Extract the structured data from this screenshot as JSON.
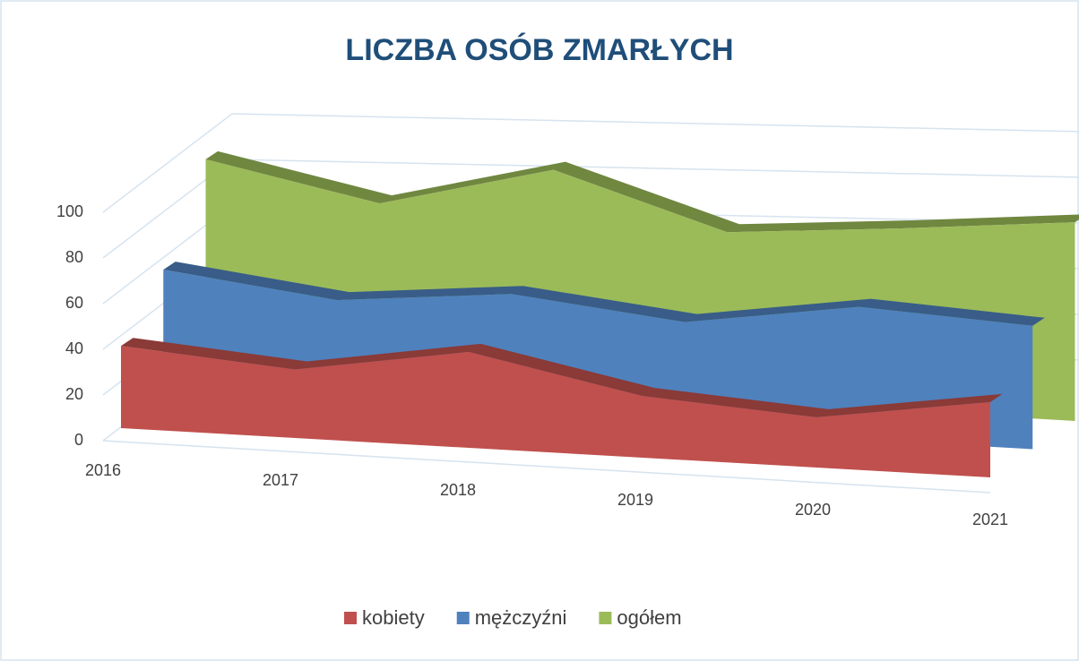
{
  "chart_data": {
    "type": "area3d",
    "title": "LICZBA OSÓB ZMARŁYCH",
    "categories": [
      "2016",
      "2017",
      "2018",
      "2019",
      "2020",
      "2021"
    ],
    "series": [
      {
        "name": "kobiety",
        "color": "#c0504d",
        "values": [
          36,
          30,
          42,
          27,
          22,
          33
        ]
      },
      {
        "name": "mężczyźni",
        "color": "#4f81bd",
        "values": [
          57,
          48,
          55,
          47,
          58,
          54
        ]
      },
      {
        "name": "ogółem",
        "color": "#9bbb59",
        "values": [
          93,
          78,
          97,
          74,
          80,
          87
        ]
      }
    ],
    "ylim": [
      0,
      100
    ],
    "yticks": [
      0,
      20,
      40,
      60,
      80,
      100
    ],
    "grid": true,
    "legend": "bottom"
  }
}
